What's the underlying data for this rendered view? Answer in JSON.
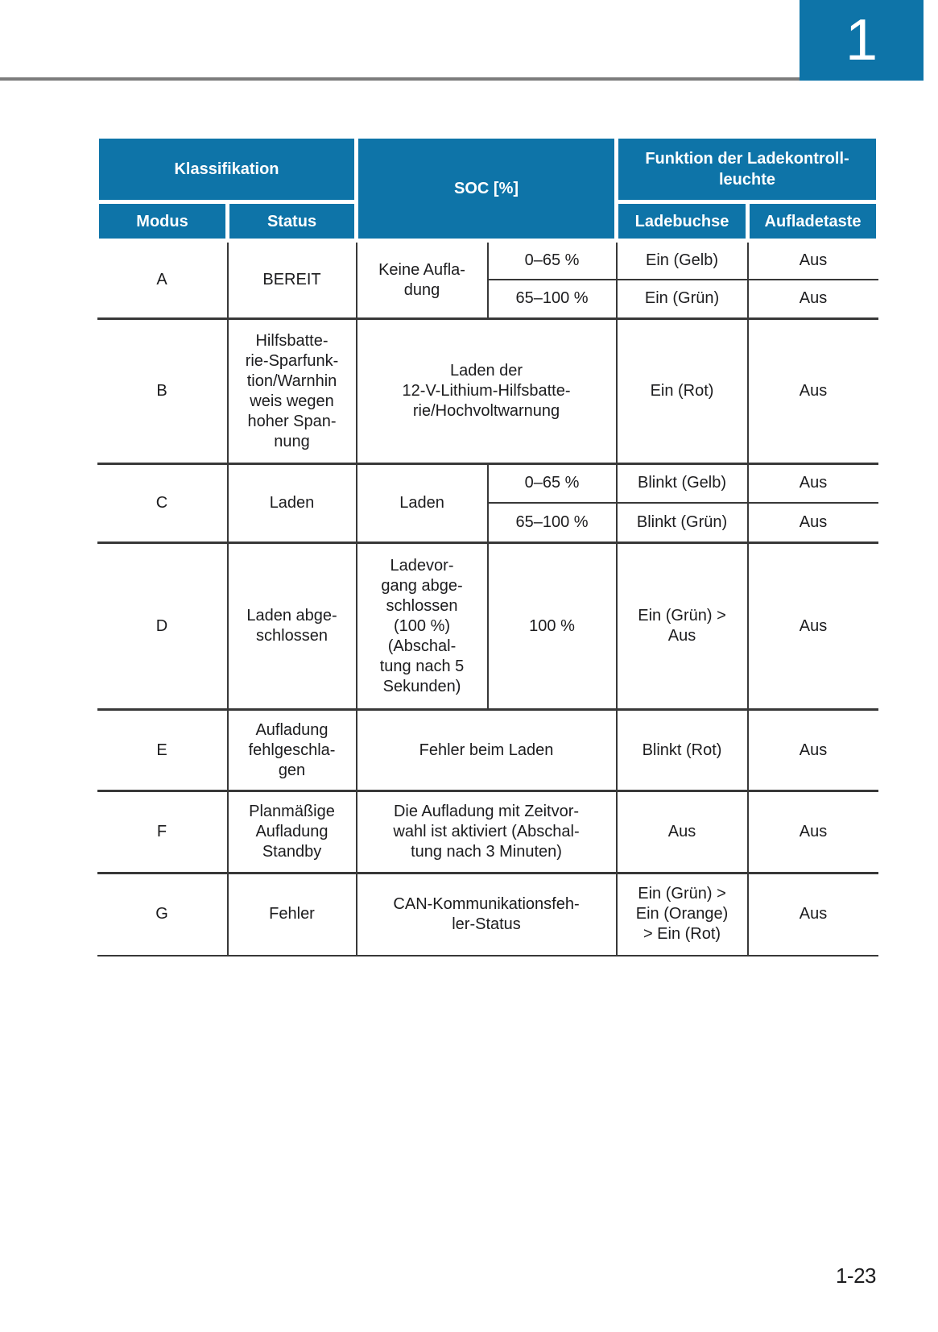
{
  "page": {
    "chapter_number": "1",
    "page_number": "1-23",
    "accent_blue": "#0e74a8",
    "rule_gray": "#7c7c7c",
    "border_dark": "#383838"
  },
  "table": {
    "header": {
      "klassifikation": "Klassifikation",
      "soc": "SOC [%]",
      "funktion": "Funktion der Ladekontroll-\nleuchte",
      "modus": "Modus",
      "status": "Status",
      "ladebuchse": "Ladebuchse",
      "aufladetaste": "Aufladetaste"
    },
    "rows": {
      "a": {
        "modus": "A",
        "status": "BEREIT",
        "soc_label": "Keine Aufla-\ndung",
        "sub": [
          {
            "soc": "0–65 %",
            "ladebuchse": "Ein (Gelb)",
            "aufladetaste": "Aus"
          },
          {
            "soc": "65–100 %",
            "ladebuchse": "Ein (Grün)",
            "aufladetaste": "Aus"
          }
        ]
      },
      "b": {
        "modus": "B",
        "status": "Hilfsbatte-\nrie-Sparfunk-\ntion/Warnhin\nweis wegen\nhoher Span-\nnung",
        "soc": "Laden der\n12-V-Lithium-Hilfsbatte-\nrie/Hochvoltwarnung",
        "ladebuchse": "Ein (Rot)",
        "aufladetaste": "Aus"
      },
      "c": {
        "modus": "C",
        "status": "Laden",
        "soc_label": "Laden",
        "sub": [
          {
            "soc": "0–65 %",
            "ladebuchse": "Blinkt (Gelb)",
            "aufladetaste": "Aus"
          },
          {
            "soc": "65–100 %",
            "ladebuchse": "Blinkt (Grün)",
            "aufladetaste": "Aus"
          }
        ]
      },
      "d": {
        "modus": "D",
        "status": "Laden abge-\nschlossen",
        "soc_label": "Ladevor-\ngang abge-\nschlossen\n(100 %)\n(Abschal-\ntung nach 5\nSekunden)",
        "soc_value": "100 %",
        "ladebuchse": "Ein (Grün) >\nAus",
        "aufladetaste": "Aus"
      },
      "e": {
        "modus": "E",
        "status": "Aufladung\nfehlgeschla-\ngen",
        "soc": "Fehler beim Laden",
        "ladebuchse": "Blinkt (Rot)",
        "aufladetaste": "Aus"
      },
      "f": {
        "modus": "F",
        "status": "Planmäßige\nAufladung\nStandby",
        "soc": "Die Aufladung mit Zeitvor-\nwahl ist aktiviert (Abschal-\ntung nach 3 Minuten)",
        "ladebuchse": "Aus",
        "aufladetaste": "Aus"
      },
      "g": {
        "modus": "G",
        "status": "Fehler",
        "soc": "CAN-Kommunikationsfeh-\nler-Status",
        "ladebuchse": "Ein (Grün) >\nEin (Orange)\n> Ein (Rot)",
        "aufladetaste": "Aus"
      }
    }
  }
}
